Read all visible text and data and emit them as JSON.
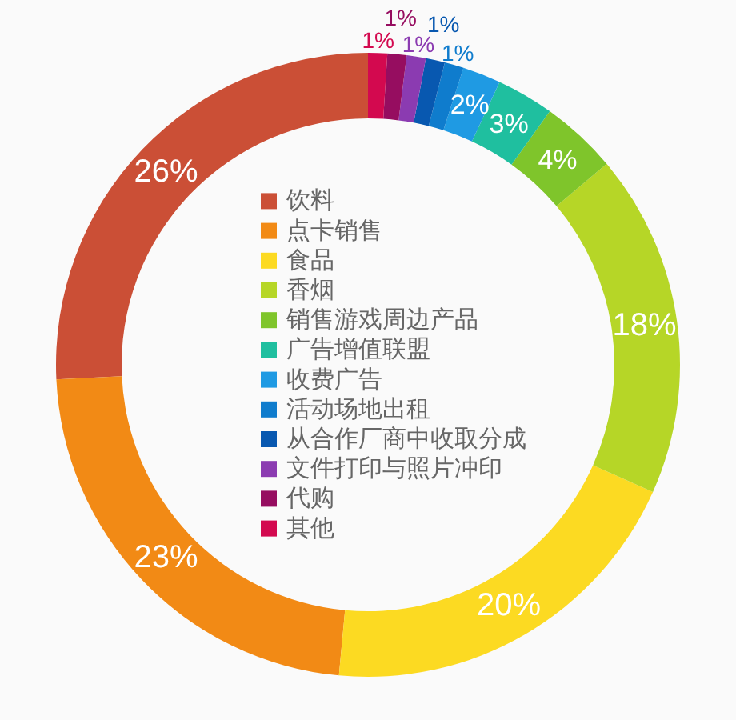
{
  "chart_data": {
    "type": "donut",
    "categories": [
      "饮料",
      "点卡销售",
      "食品",
      "香烟",
      "销售游戏周边产品",
      "广告增值联盟",
      "收费广告",
      "活动场地出租",
      "从合作厂商中收取分成",
      "文件打印与照片冲印",
      "代购",
      "其他"
    ],
    "values": [
      26,
      23,
      20,
      18,
      4,
      3,
      2,
      1,
      1,
      1,
      1,
      1
    ],
    "colors": [
      "#cb4f36",
      "#f28a15",
      "#fcda22",
      "#b6d627",
      "#7fc52b",
      "#1fbf9f",
      "#1f9ae3",
      "#0f7ccd",
      "#0858b0",
      "#8b3bb1",
      "#960d60",
      "#d3094f"
    ],
    "value_labels": [
      "26%",
      "23%",
      "20%",
      "18%",
      "4%",
      "3%",
      "2%",
      "1%",
      "1%",
      "1%",
      "1%",
      "1%"
    ],
    "legend": "center"
  }
}
